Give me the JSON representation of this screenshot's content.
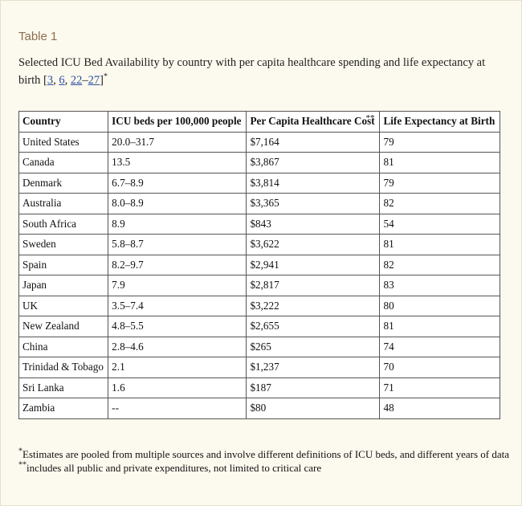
{
  "title": "Table 1",
  "caption": {
    "text": "Selected ICU Bed Availability by country with per capita healthcare spending and life expectancy at birth ",
    "citation": [
      "[",
      "3",
      ", ",
      "6",
      ", ",
      "22",
      "–",
      "27",
      "]"
    ],
    "mark": "*"
  },
  "table": {
    "columns": [
      "Country",
      "ICU beds per 100,000 people",
      "Per Capita Healthcare Cost",
      "Life Expectancy at Birth"
    ],
    "cost_mark": "**",
    "rows": [
      [
        "United States",
        "20.0–31.7",
        "$7,164",
        "79"
      ],
      [
        "Canada",
        "13.5",
        "$3,867",
        "81"
      ],
      [
        "Denmark",
        "6.7–8.9",
        "$3,814",
        "79"
      ],
      [
        "Australia",
        "8.0–8.9",
        "$3,365",
        "82"
      ],
      [
        "South Africa",
        "8.9",
        "$843",
        "54"
      ],
      [
        "Sweden",
        "5.8–8.7",
        "$3,622",
        "81"
      ],
      [
        "Spain",
        "8.2–9.7",
        "$2,941",
        "82"
      ],
      [
        "Japan",
        "7.9",
        "$2,817",
        "83"
      ],
      [
        "UK",
        "3.5–7.4",
        "$3,222",
        "80"
      ],
      [
        "New Zealand",
        "4.8–5.5",
        "$2,655",
        "81"
      ],
      [
        "China",
        "2.8–4.6",
        "$265",
        "74"
      ],
      [
        "Trinidad & Tobago",
        "2.1",
        "$1,237",
        "70"
      ],
      [
        "Sri Lanka",
        "1.6",
        "$187",
        "71"
      ],
      [
        "Zambia",
        "--",
        "$80",
        "48"
      ]
    ]
  },
  "footnotes": [
    {
      "mark": "*",
      "text": "Estimates are pooled from multiple sources and involve different definitions of ICU beds, and different years of data"
    },
    {
      "mark": "**",
      "text": "includes all public and private expenditures, not limited to critical care"
    }
  ]
}
